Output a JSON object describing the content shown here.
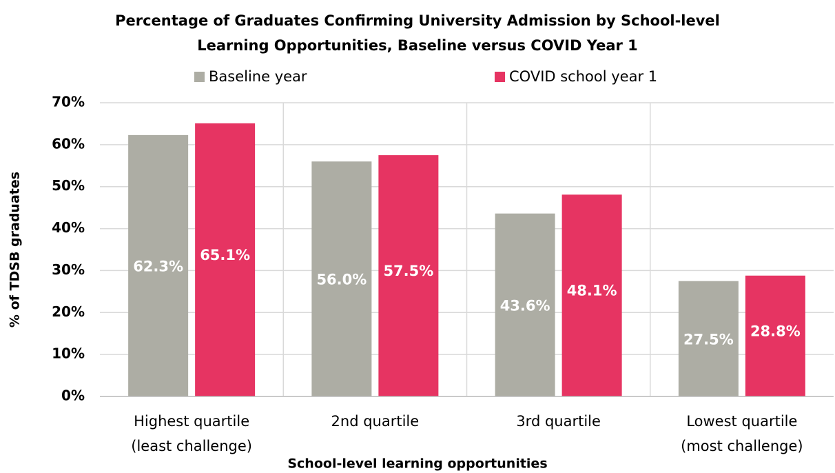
{
  "chart_data": {
    "type": "bar",
    "title": [
      "Percentage of Graduates Confirming University Admission by School-level",
      "Learning Opportunities, Baseline versus COVID Year 1"
    ],
    "x_label": "School-level learning opportunities",
    "y_label": "% of TDSB graduates",
    "categories": [
      [
        "Highest quartile",
        "(least challenge)"
      ],
      [
        "2nd quartile"
      ],
      [
        "3rd quartile"
      ],
      [
        "Lowest quartile",
        "(most challenge)"
      ]
    ],
    "series": [
      {
        "name": "Baseline year",
        "color": "#adada4",
        "values": [
          62.3,
          56.0,
          43.6,
          27.5
        ],
        "value_labels": [
          "62.3%",
          "56.0%",
          "43.6%",
          "27.5%"
        ]
      },
      {
        "name": "COVID school year 1",
        "color": "#e63462",
        "values": [
          65.1,
          57.5,
          48.1,
          28.8
        ],
        "value_labels": [
          "65.1%",
          "57.5%",
          "48.1%",
          "28.8%"
        ]
      }
    ],
    "ylim": [
      0,
      70
    ],
    "yticks": [
      {
        "value": 0,
        "label": "0%"
      },
      {
        "value": 10,
        "label": "10%"
      },
      {
        "value": 20,
        "label": "20%"
      },
      {
        "value": 30,
        "label": "30%"
      },
      {
        "value": 40,
        "label": "40%"
      },
      {
        "value": 50,
        "label": "50%"
      },
      {
        "value": 60,
        "label": "60%"
      },
      {
        "value": 70,
        "label": "70%"
      }
    ],
    "grid": true,
    "legend": "top"
  }
}
